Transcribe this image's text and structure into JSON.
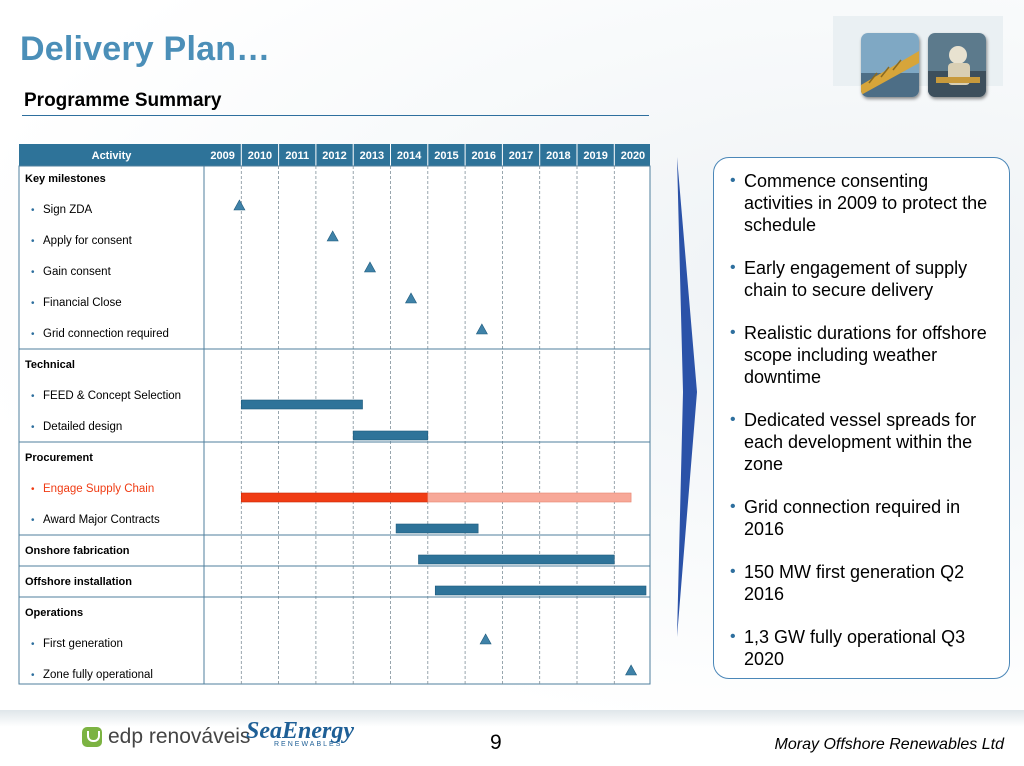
{
  "header": {
    "title": "Delivery Plan…",
    "subtitle": "Programme Summary"
  },
  "chart_data": {
    "type": "gantt",
    "activity_header": "Activity",
    "years": [
      "2009",
      "2010",
      "2011",
      "2012",
      "2013",
      "2014",
      "2015",
      "2016",
      "2017",
      "2018",
      "2019",
      "2020"
    ],
    "colors": {
      "header": "#2e7399",
      "bar": "#2e7399",
      "highlight": "#f03c14",
      "highlight_light": "#f7a898",
      "milestone": "#3f82a8"
    },
    "rows": [
      {
        "label": "Key milestones",
        "type": "heading"
      },
      {
        "label": "Sign ZDA",
        "type": "item",
        "milestone": 2009.95
      },
      {
        "label": "Apply for consent",
        "type": "item",
        "milestone": 2012.45
      },
      {
        "label": "Gain consent",
        "type": "item",
        "milestone": 2013.45
      },
      {
        "label": "Financial Close",
        "type": "item",
        "milestone": 2014.55
      },
      {
        "label": "Grid connection required",
        "type": "item",
        "milestone": 2016.45
      },
      {
        "label": "Technical",
        "type": "heading"
      },
      {
        "label": "FEED & Concept Selection",
        "type": "item",
        "bar": [
          2010.0,
          2013.25
        ]
      },
      {
        "label": "Detailed design",
        "type": "item",
        "bar": [
          2013.0,
          2015.0
        ]
      },
      {
        "label": "Procurement",
        "type": "heading"
      },
      {
        "label": "Engage Supply Chain",
        "type": "item",
        "highlight": true,
        "bar": [
          2010.0,
          2015.0
        ],
        "bar_extension": [
          2015.0,
          2020.45
        ]
      },
      {
        "label": "Award Major Contracts",
        "type": "item",
        "bar": [
          2014.15,
          2016.35
        ]
      },
      {
        "label": "Onshore fabrication",
        "type": "heading",
        "bar": [
          2014.75,
          2020.0
        ]
      },
      {
        "label": "Offshore installation",
        "type": "heading",
        "bar": [
          2015.2,
          2020.85
        ]
      },
      {
        "label": "Operations",
        "type": "heading"
      },
      {
        "label": "First generation",
        "type": "item",
        "milestone": 2016.55
      },
      {
        "label": "Zone fully operational",
        "type": "item",
        "milestone": 2020.45
      }
    ]
  },
  "summary": {
    "bullets": [
      "Commence consenting activities in 2009 to protect the schedule",
      "Early engagement of supply chain to secure delivery",
      "Realistic durations for offshore scope including weather downtime",
      "Dedicated vessel spreads for each development within the zone",
      "Grid connection required in 2016",
      "150 MW first generation Q2 2016",
      "1,3 GW fully operational Q3 2020"
    ]
  },
  "footer": {
    "logo_edp": "edp renováveis",
    "logo_seaenergy": "SeaEnergy",
    "logo_seaenergy_sub": "RENEWABLES",
    "page_number": "9",
    "company": "Moray Offshore Renewables Ltd"
  }
}
